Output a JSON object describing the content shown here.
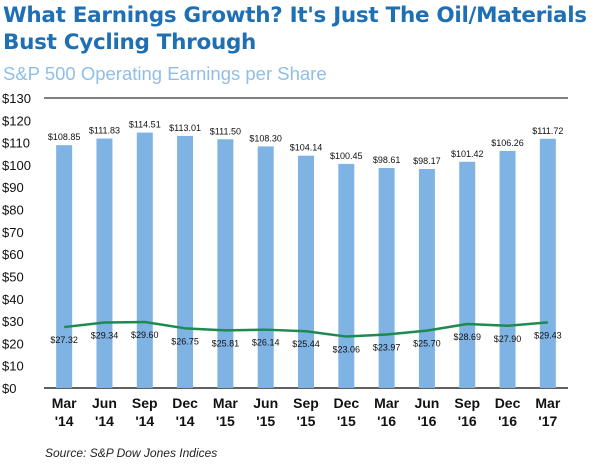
{
  "header": {
    "title": "What Earnings Growth? It's Just The Oil/Materials Bust Cycling Through",
    "subtitle": "S&P 500 Operating Earnings per Share"
  },
  "footer": {
    "source": "Source: S&P Dow Jones Indices"
  },
  "colors": {
    "title": "#1e6fb4",
    "subtitle": "#8fbfe6",
    "bars": "#7fb3e3",
    "line": "#1e8a50",
    "axis": "#000000"
  },
  "chart_data": {
    "type": "bar",
    "title": "S&P 500 Operating Earnings per Share",
    "categories": [
      [
        "Mar",
        "'14"
      ],
      [
        "Jun",
        "'14"
      ],
      [
        "Sep",
        "'14"
      ],
      [
        "Dec",
        "'14"
      ],
      [
        "Mar",
        "'15"
      ],
      [
        "Jun",
        "'15"
      ],
      [
        "Sep",
        "'15"
      ],
      [
        "Dec",
        "'15"
      ],
      [
        "Mar",
        "'16"
      ],
      [
        "Jun",
        "'16"
      ],
      [
        "Sep",
        "'16"
      ],
      [
        "Dec",
        "'16"
      ],
      [
        "Mar",
        "'17"
      ]
    ],
    "series": [
      {
        "type": "bar",
        "values": [
          108.85,
          111.83,
          114.51,
          113.01,
          111.5,
          108.3,
          104.14,
          100.45,
          98.61,
          98.17,
          101.42,
          106.26,
          111.72
        ],
        "labels": [
          "$108.85",
          "$111.83",
          "$114.51",
          "$113.01",
          "$111.50",
          "$108.30",
          "$104.14",
          "$100.45",
          "$98.61",
          "$98.17",
          "$101.42",
          "$106.26",
          "$111.72"
        ]
      },
      {
        "type": "line",
        "values": [
          27.32,
          29.34,
          29.6,
          26.75,
          25.81,
          26.14,
          25.44,
          23.06,
          23.97,
          25.7,
          28.69,
          27.9,
          29.43
        ],
        "labels": [
          "$27.32",
          "$29.34",
          "$29.60",
          "$26.75",
          "$25.81",
          "$26.14",
          "$25.44",
          "$23.06",
          "$23.97",
          "$25.70",
          "$28.69",
          "$27.90",
          "$29.43"
        ]
      }
    ],
    "ylim": [
      0,
      130
    ],
    "yticks": [
      "$0",
      "$10",
      "$20",
      "$30",
      "$40",
      "$50",
      "$60",
      "$70",
      "$80",
      "$90",
      "$100",
      "$110",
      "$120",
      "$130"
    ],
    "grid": false,
    "legend": "none"
  }
}
